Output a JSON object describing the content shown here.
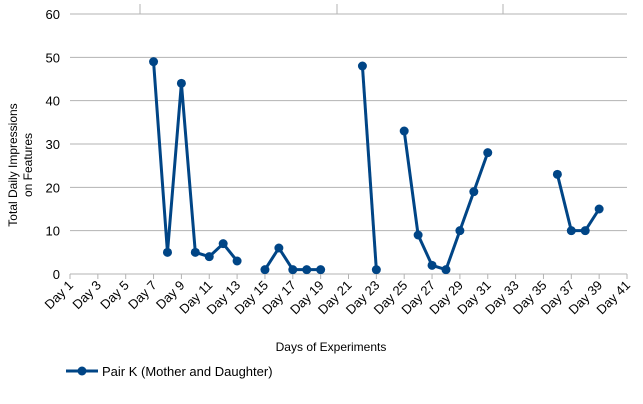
{
  "chart_data": {
    "type": "line",
    "xlabel": "Days of Experiments",
    "ylabel_lines": [
      "Total Daily Impressions",
      "on Features"
    ],
    "ylim": [
      0,
      60
    ],
    "yticks": [
      0,
      10,
      20,
      30,
      40,
      50,
      60
    ],
    "x_range": [
      1,
      41
    ],
    "x_tick_labels": [
      "Day 1",
      "Day 3",
      "Day 5",
      "Day 7",
      "Day 9",
      "Day 11",
      "Day 13",
      "Day 15",
      "Day 17",
      "Day 19",
      "Day 21",
      "Day 23",
      "Day 25",
      "Day 27",
      "Day 29",
      "Day 31",
      "Day 33",
      "Day 35",
      "Day 37",
      "Day 39",
      "Day 41"
    ],
    "x_tick_days": [
      1,
      3,
      5,
      7,
      9,
      11,
      13,
      15,
      17,
      19,
      21,
      23,
      25,
      27,
      29,
      31,
      33,
      35,
      37,
      39,
      41
    ],
    "grid": "horizontal",
    "legend_position": "bottom-left",
    "series": [
      {
        "name": "Pair K (Mother and Daughter)",
        "color": "#004586",
        "segments": [
          [
            [
              7,
              49
            ],
            [
              8,
              5
            ],
            [
              9,
              44
            ],
            [
              10,
              5
            ],
            [
              11,
              4
            ],
            [
              12,
              7
            ],
            [
              13,
              3
            ]
          ],
          [
            [
              15,
              1
            ],
            [
              16,
              6
            ],
            [
              17,
              1
            ],
            [
              18,
              1
            ],
            [
              19,
              1
            ]
          ],
          [
            [
              22,
              48
            ],
            [
              23,
              1
            ]
          ],
          [
            [
              25,
              33
            ],
            [
              26,
              9
            ],
            [
              27,
              2
            ],
            [
              28,
              1
            ],
            [
              29,
              10
            ],
            [
              30,
              19
            ],
            [
              31,
              28
            ]
          ],
          [
            [
              36,
              23
            ],
            [
              37,
              10
            ],
            [
              38,
              10
            ],
            [
              39,
              15
            ]
          ]
        ]
      }
    ]
  }
}
